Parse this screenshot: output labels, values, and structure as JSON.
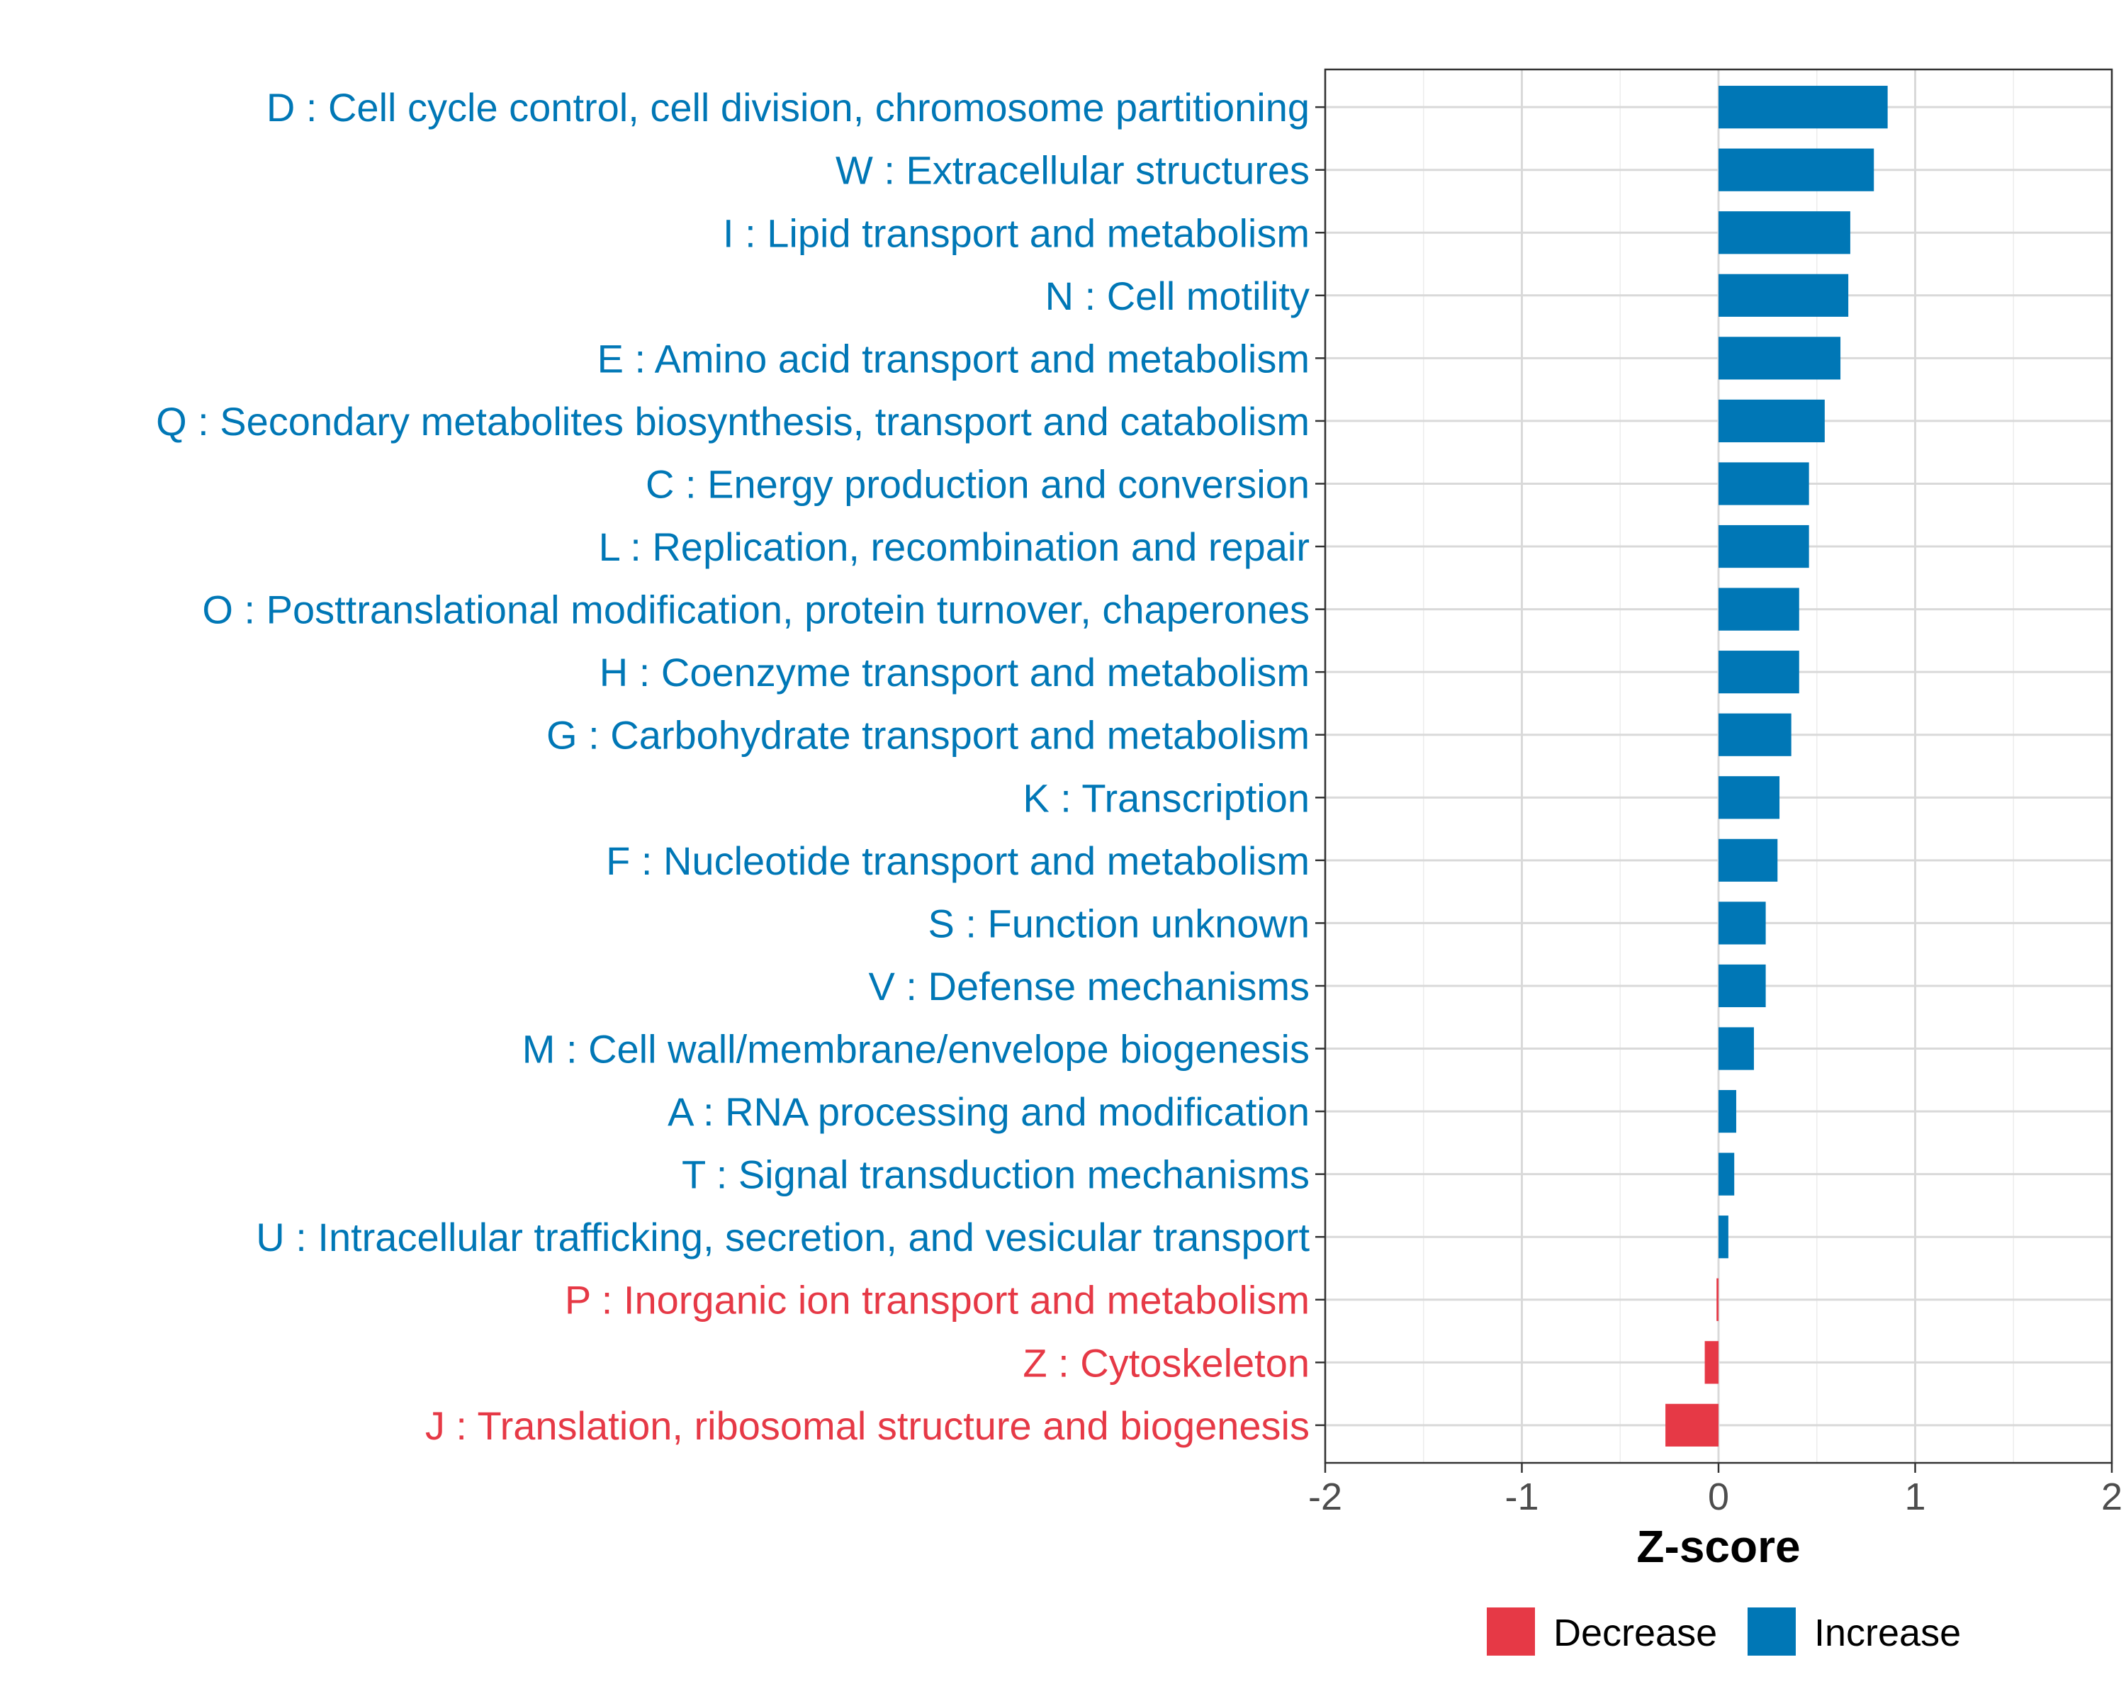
{
  "chart_data": {
    "type": "bar",
    "orientation": "horizontal",
    "xlabel": "Z-score",
    "xlim": [
      -2,
      2
    ],
    "xticks": [
      -2,
      -1,
      0,
      1,
      2
    ],
    "xtick_labels": [
      "-2",
      "-1",
      "0",
      "1",
      "2"
    ],
    "grid": true,
    "legend": {
      "position": "bottom",
      "entries": [
        {
          "label": "Decrease",
          "color": "#E63946"
        },
        {
          "label": "Increase",
          "color": "#0077B6"
        }
      ]
    },
    "categories": [
      "D : Cell cycle control, cell division, chromosome partitioning",
      "W : Extracellular structures",
      "I : Lipid transport and metabolism",
      "N : Cell motility",
      "E : Amino acid transport and metabolism",
      "Q : Secondary metabolites biosynthesis, transport and catabolism",
      "C : Energy production and conversion",
      "L : Replication, recombination and repair",
      "O : Posttranslational modification, protein turnover, chaperones",
      "H : Coenzyme transport and metabolism",
      "G : Carbohydrate transport and metabolism",
      "K : Transcription",
      "F : Nucleotide transport and metabolism",
      "S : Function unknown",
      "V : Defense mechanisms",
      "M : Cell wall/membrane/envelope biogenesis",
      "A : RNA processing and modification",
      "T : Signal transduction mechanisms",
      "U : Intracellular trafficking, secretion, and vesicular transport",
      "P : Inorganic ion transport and metabolism",
      "Z : Cytoskeleton",
      "J : Translation, ribosomal structure and biogenesis"
    ],
    "values": [
      0.86,
      0.79,
      0.67,
      0.66,
      0.62,
      0.54,
      0.46,
      0.46,
      0.41,
      0.41,
      0.37,
      0.31,
      0.3,
      0.24,
      0.24,
      0.18,
      0.09,
      0.08,
      0.05,
      -0.01,
      -0.07,
      -0.27
    ],
    "groups": [
      "Increase",
      "Increase",
      "Increase",
      "Increase",
      "Increase",
      "Increase",
      "Increase",
      "Increase",
      "Increase",
      "Increase",
      "Increase",
      "Increase",
      "Increase",
      "Increase",
      "Increase",
      "Increase",
      "Increase",
      "Increase",
      "Increase",
      "Decrease",
      "Decrease",
      "Decrease"
    ]
  }
}
